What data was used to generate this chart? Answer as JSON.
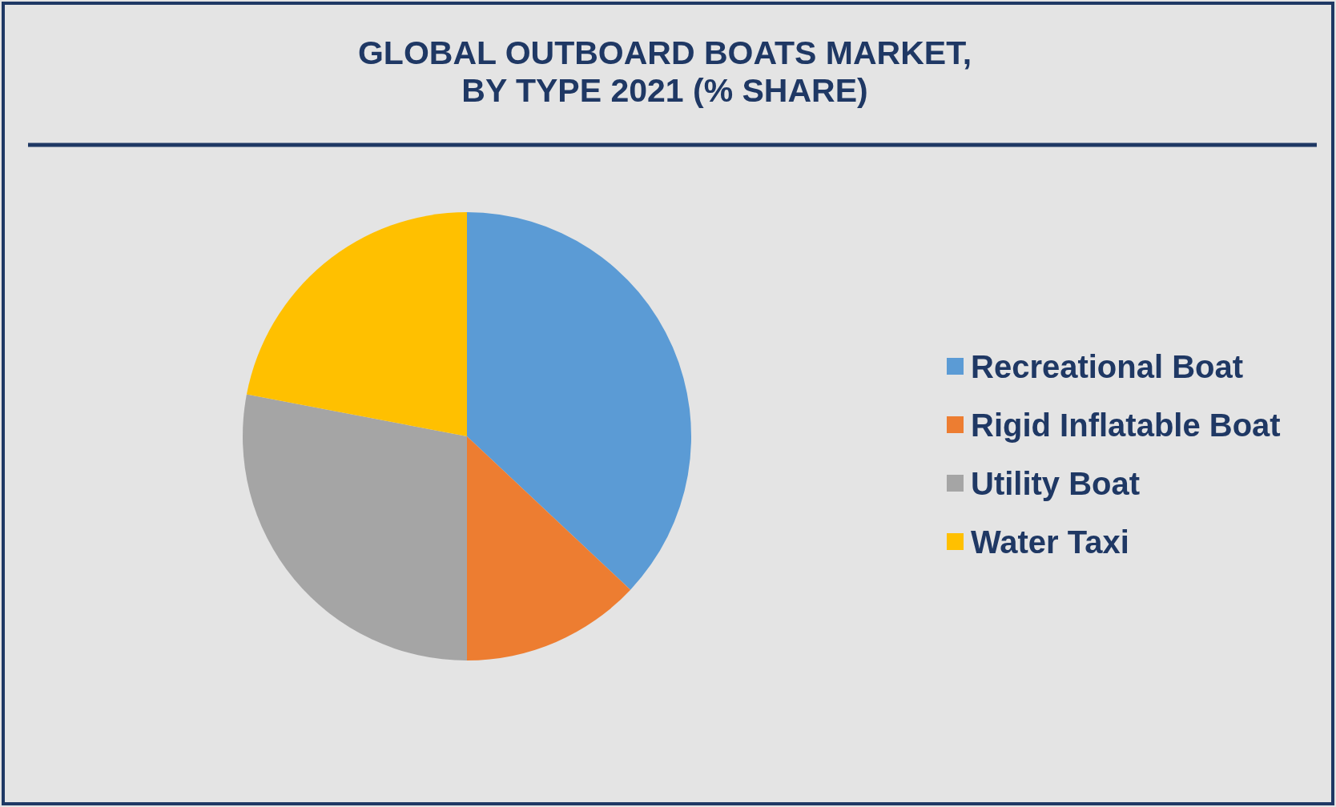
{
  "chart_data": {
    "type": "pie",
    "title": "GLOBAL OUTBOARD BOATS MARKET,\nBY TYPE 2021 (% SHARE)",
    "categories": [
      "Recreational Boat",
      "Rigid Inflatable Boat",
      "Utility Boat",
      "Water Taxi"
    ],
    "values": [
      37,
      13,
      28,
      22
    ],
    "colors": [
      "#5b9bd5",
      "#ed7d31",
      "#a5a5a5",
      "#ffc000"
    ],
    "legend": "right"
  }
}
